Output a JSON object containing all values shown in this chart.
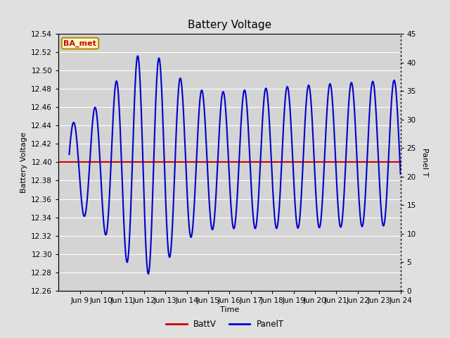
{
  "title": "Battery Voltage",
  "xlabel": "Time",
  "ylabel_left": "Battery Voltage",
  "ylabel_right": "Panel T",
  "x_tick_labels": [
    "Jun 9",
    "Jun 10",
    "Jun 11",
    "Jun 12",
    "Jun 13",
    "Jun 14",
    "Jun 15",
    "Jun 16",
    "Jun 17",
    "Jun 18",
    "Jun 19",
    "Jun 20",
    "Jun 21",
    "Jun 22",
    "Jun 23",
    "Jun 24"
  ],
  "ylim_left": [
    12.26,
    12.54
  ],
  "ylim_right": [
    0,
    45
  ],
  "yticks_left": [
    12.26,
    12.28,
    12.3,
    12.32,
    12.34,
    12.36,
    12.38,
    12.4,
    12.42,
    12.44,
    12.46,
    12.48,
    12.5,
    12.52,
    12.54
  ],
  "yticks_right": [
    0,
    5,
    10,
    15,
    20,
    25,
    30,
    35,
    40,
    45
  ],
  "battv_value": 12.4,
  "battv_color": "#cc0000",
  "panelt_color": "#0000cc",
  "background_color": "#e0e0e0",
  "plot_bg_color": "#d4d4d4",
  "annotation_text": "BA_met",
  "annotation_bg": "#ffffcc",
  "annotation_border": "#bb8800",
  "annotation_text_color": "#cc0000",
  "legend_battv": "BattV",
  "legend_panelt": "PanelT",
  "grid_color": "#ffffff",
  "title_fontsize": 11
}
